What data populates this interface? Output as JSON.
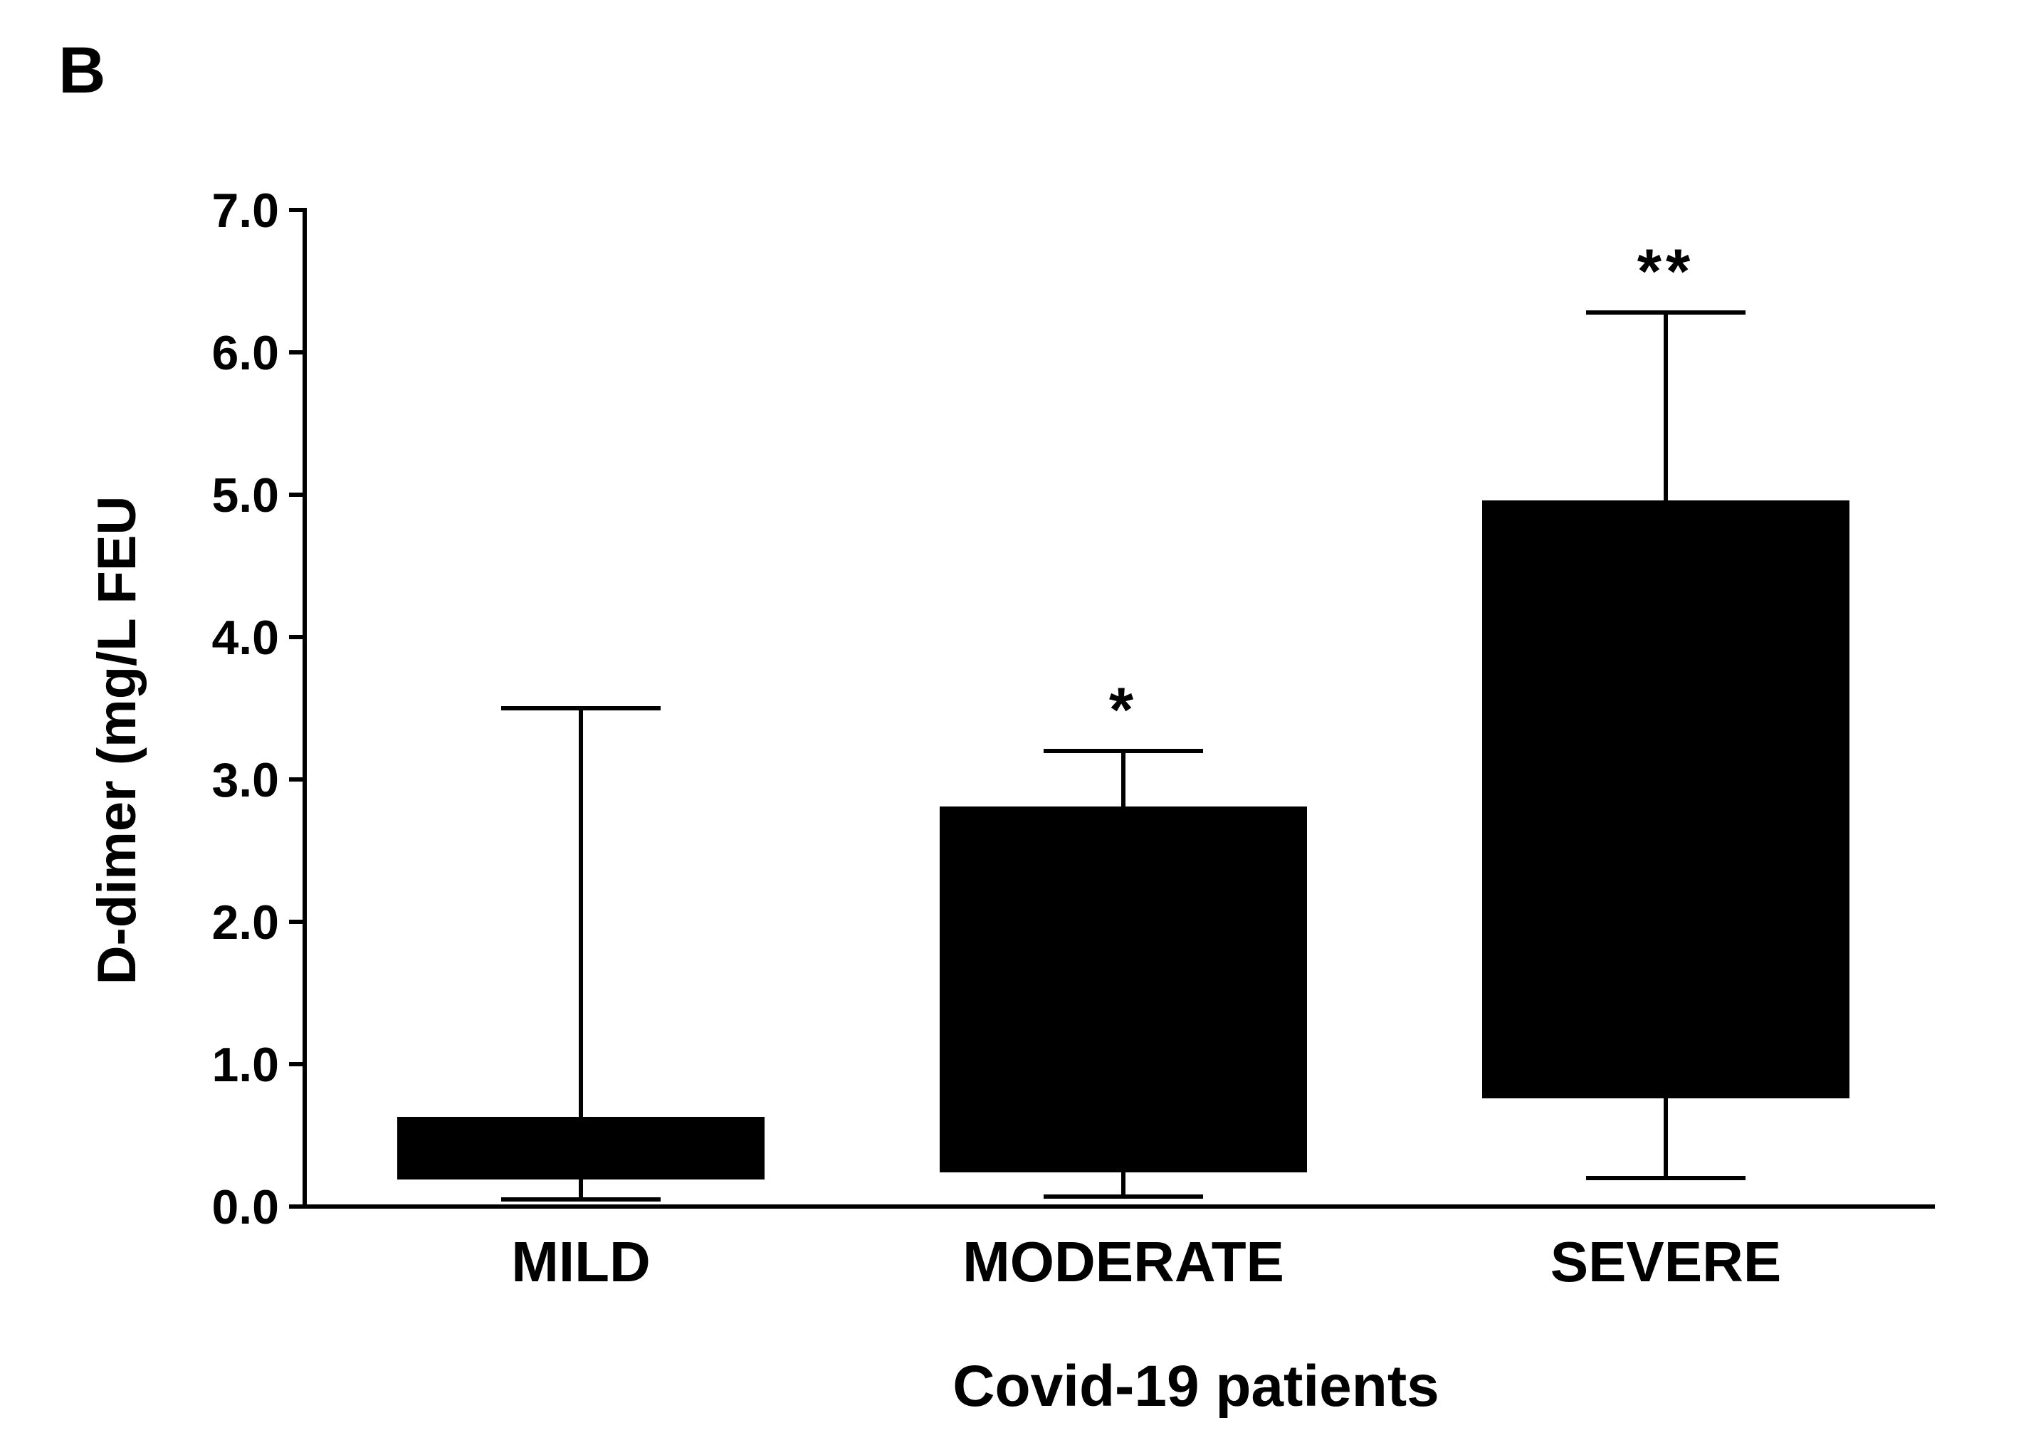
{
  "panel_label": "B",
  "chart_data": {
    "type": "box",
    "title": "",
    "xlabel": "Covid-19 patients",
    "ylabel": "D-dimer (mg/L FEU",
    "ylim": [
      0,
      7
    ],
    "yticks": [
      0,
      1,
      2,
      3,
      4,
      5,
      6,
      7
    ],
    "ytick_labels": [
      "0.0",
      "1.0",
      "2.0",
      "3.0",
      "4.0",
      "5.0",
      "6.0",
      "7.0"
    ],
    "categories": [
      "MILD",
      "MODERATE",
      "SEVERE"
    ],
    "boxes": [
      {
        "category": "MILD",
        "whisker_low": 0.05,
        "q1": 0.2,
        "q3": 0.62,
        "whisker_high": 3.5,
        "annotation": ""
      },
      {
        "category": "MODERATE",
        "whisker_low": 0.07,
        "q1": 0.25,
        "q3": 2.8,
        "whisker_high": 3.2,
        "annotation": "*"
      },
      {
        "category": "SEVERE",
        "whisker_low": 0.2,
        "q1": 0.77,
        "q3": 4.95,
        "whisker_high": 6.28,
        "annotation": "**"
      }
    ],
    "colors": {
      "box_fill": "#000000",
      "axis": "#000000"
    },
    "grid": false,
    "legend": "none"
  }
}
